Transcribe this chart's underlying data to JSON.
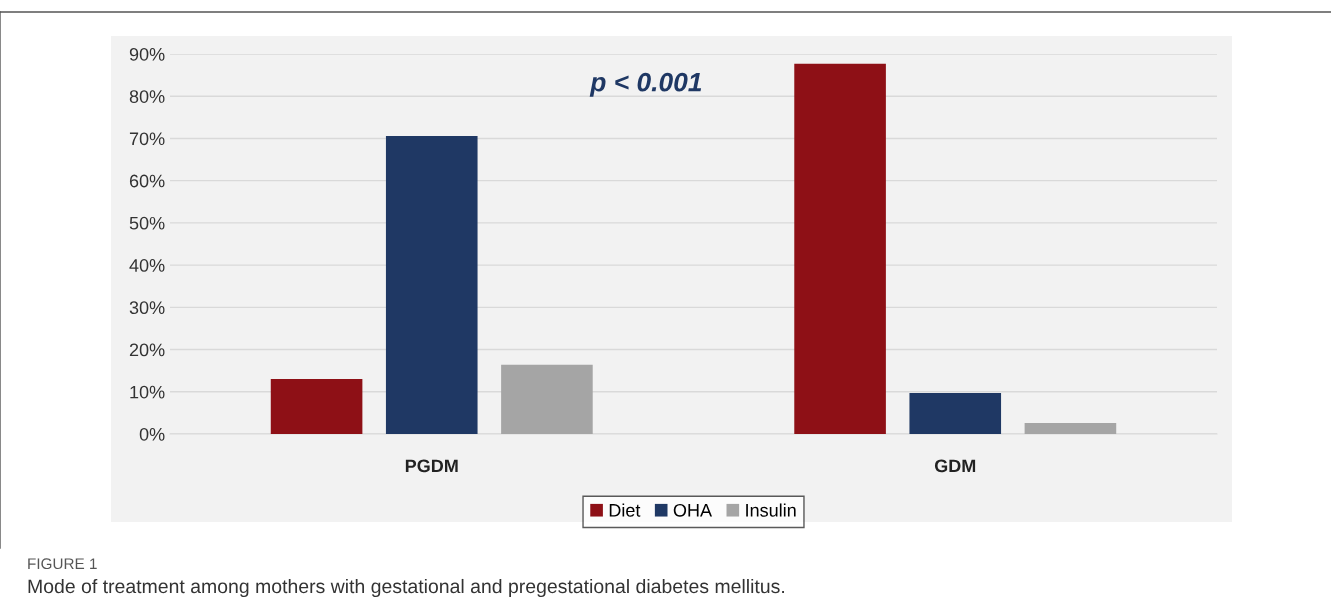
{
  "chart_data": {
    "type": "bar",
    "categories": [
      "PGDM",
      "GDM"
    ],
    "series": [
      {
        "name": "Diet",
        "color": "#8e1016",
        "values": [
          13.0,
          87.7
        ]
      },
      {
        "name": "OHA",
        "color": "#1f3864",
        "values": [
          70.6,
          9.7
        ]
      },
      {
        "name": "Insulin",
        "color": "#a5a5a5",
        "values": [
          16.4,
          2.6
        ]
      }
    ],
    "ylim": [
      0,
      90
    ],
    "yticks": [
      {
        "value": 0,
        "label": "0%"
      },
      {
        "value": 10,
        "label": "10%"
      },
      {
        "value": 20,
        "label": "20%"
      },
      {
        "value": 30,
        "label": "30%"
      },
      {
        "value": 40,
        "label": "40%"
      },
      {
        "value": 50,
        "label": "50%"
      },
      {
        "value": 60,
        "label": "60%"
      },
      {
        "value": 70,
        "label": "70%"
      },
      {
        "value": 80,
        "label": "80%"
      },
      {
        "value": 90,
        "label": "90%"
      }
    ],
    "grid": "y",
    "legend": "bottom",
    "annotations": [
      "p < 0.001",
      "FIGURE 1",
      "Mode of treatment among mothers with gestational and pregestational diabetes mellitus."
    ]
  }
}
